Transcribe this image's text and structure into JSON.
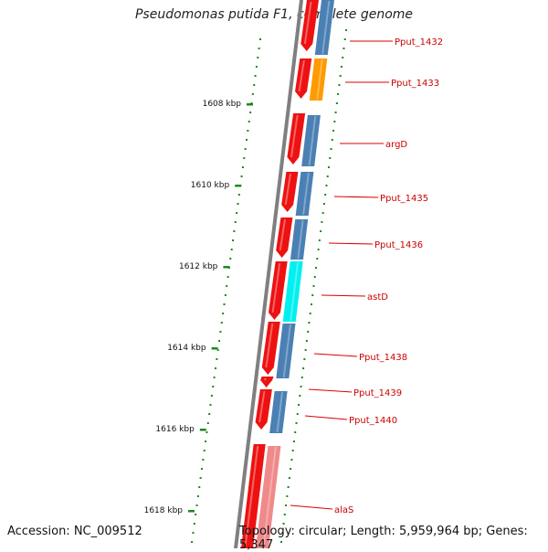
{
  "title": "Pseudomonas putida F1, complete genome",
  "accession": "Accession: NC_009512",
  "topology": "Topology: circular; Length: 5,959,964 bp; Genes: 5,347",
  "colors": {
    "backbone": "#7f7f7f",
    "cds": "#ee1111",
    "gene_default": "#4a80b4",
    "gene_orange": "#ff9a00",
    "gene_cyan": "#00f0f0",
    "gene_pink": "#f08a8a",
    "tick": "#1a8a1a",
    "label": "#cc0000",
    "leader": "#dd0000"
  },
  "scale": {
    "unit": "kbp",
    "labels": [
      "1608 kbp",
      "1610 kbp",
      "1612 kbp",
      "1614 kbp",
      "1616 kbp",
      "1618 kbp"
    ]
  },
  "genes": [
    {
      "name": "Pput_1432",
      "color": "gene_default",
      "strand": "-"
    },
    {
      "name": "Pput_1433",
      "color": "gene_orange",
      "strand": "-"
    },
    {
      "name": "argD",
      "color": "gene_default",
      "strand": "-"
    },
    {
      "name": "Pput_1435",
      "color": "gene_default",
      "strand": "-"
    },
    {
      "name": "Pput_1436",
      "color": "gene_default",
      "strand": "-"
    },
    {
      "name": "astD",
      "color": "gene_cyan",
      "strand": "-"
    },
    {
      "name": "Pput_1438",
      "color": "gene_default",
      "strand": "-"
    },
    {
      "name": "Pput_1439",
      "color": "gene_default",
      "strand": "-"
    },
    {
      "name": "Pput_1440",
      "color": "gene_default",
      "strand": "-"
    },
    {
      "name": "alaS",
      "color": "gene_pink",
      "strand": "-"
    }
  ]
}
